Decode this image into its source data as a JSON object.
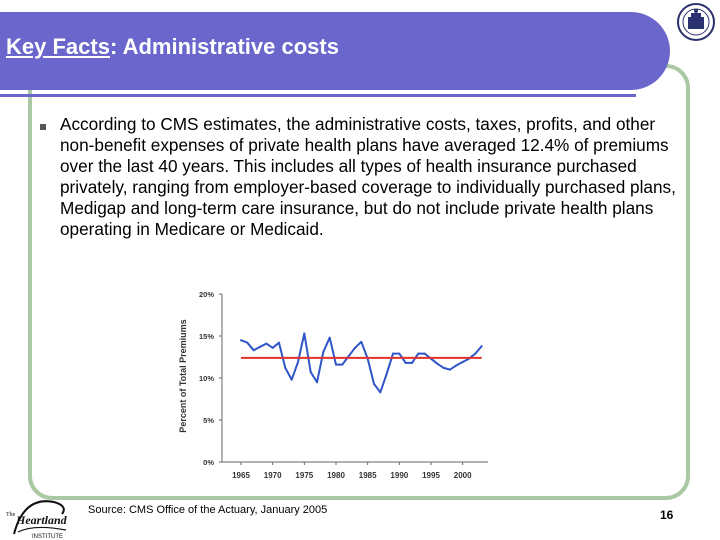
{
  "slide": {
    "title_prefix": "Key Facts",
    "title_rest": ": Administrative costs",
    "body": "According to CMS estimates, the administrative costs, taxes, profits, and other non-benefit expenses of private health plans have averaged 12.4% of premiums over the last 40 years. This includes all types of health insurance purchased privately, ranging from employer-based coverage to individually purchased plans, Medigap and long-term care insurance, but do not include private health plans operating in Medicare or Medicaid.",
    "source": "Source: CMS Office of the Actuary, January 2005",
    "page_number": "16",
    "logo_text_the": "The",
    "logo_text_main": "Heartland",
    "logo_text_sub": "INSTITUTE",
    "colors": {
      "header": "#6a66cc",
      "frame": "#a9c8a3",
      "series": "#2f55c8",
      "average": "#e0322a"
    }
  },
  "chart_data": {
    "type": "line",
    "ylabel": "Percent of Total Premiums",
    "xlabel": "",
    "ylim": [
      0,
      20
    ],
    "xlim": [
      1962,
      2004
    ],
    "y_ticks": [
      "0%",
      "5%",
      "10%",
      "15%",
      "20%"
    ],
    "x_ticks": [
      "1965",
      "1970",
      "1975",
      "1980",
      "1985",
      "1990",
      "1995",
      "2000"
    ],
    "grid": false,
    "series": [
      {
        "x": [
          1965,
          1966,
          1967,
          1968,
          1969,
          1970,
          1971,
          1972,
          1973,
          1974,
          1975,
          1976,
          1977,
          1978,
          1979,
          1980,
          1981,
          1982,
          1983,
          1984,
          1985,
          1986,
          1987,
          1988,
          1989,
          1990,
          1991,
          1992,
          1993,
          1994,
          1995,
          1996,
          1997,
          1998,
          1999,
          2000,
          2001,
          2002,
          2003
        ],
        "y": [
          14.5,
          14.2,
          13.3,
          13.7,
          14.1,
          13.6,
          14.2,
          11.2,
          9.8,
          11.9,
          15.3,
          10.7,
          9.5,
          13.1,
          14.8,
          11.6,
          11.6,
          12.6,
          13.6,
          14.3,
          12.3,
          9.3,
          8.3,
          10.5,
          12.9,
          12.9,
          11.8,
          11.8,
          12.9,
          12.9,
          12.3,
          11.7,
          11.2,
          11.0,
          11.5,
          11.9,
          12.3,
          12.9,
          13.8
        ]
      },
      {
        "y": [
          12.4,
          12.4
        ]
      }
    ]
  }
}
